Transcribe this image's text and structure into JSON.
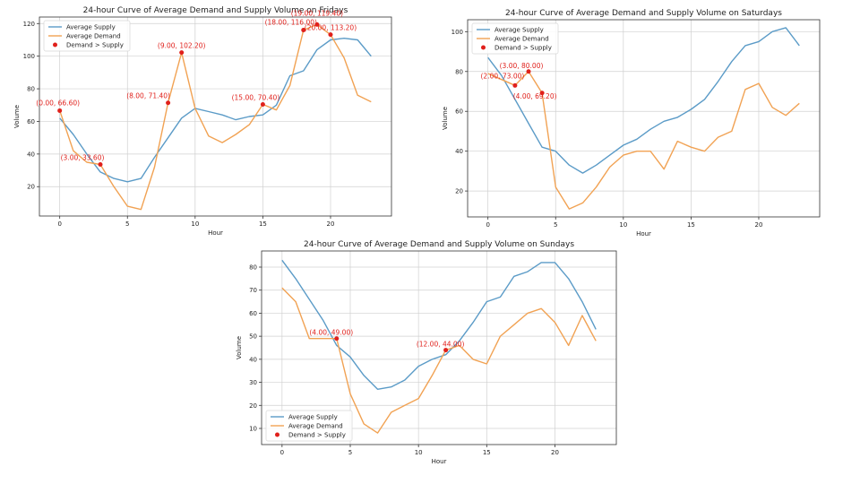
{
  "chart_data": [
    {
      "type": "line",
      "title": "24-hour Curve of Average Demand and Supply Volume on Fridays",
      "xlabel": "Hour",
      "ylabel": "Volume",
      "xlim": [
        -1.5,
        24.5
      ],
      "ylim": [
        2,
        124
      ],
      "xticks": [
        0,
        5,
        10,
        15,
        20
      ],
      "yticks": [
        20,
        40,
        60,
        80,
        100,
        120
      ],
      "grid": true,
      "legend_position": "top-left",
      "x": [
        0,
        1,
        2,
        3,
        4,
        5,
        6,
        7,
        8,
        9,
        10,
        11,
        12,
        13,
        14,
        15,
        16,
        17,
        18,
        19,
        20,
        21,
        22,
        23
      ],
      "series": [
        {
          "name": "Average Supply",
          "color": "#5b9bc7",
          "values": [
            62,
            52,
            40,
            29,
            25,
            23,
            25,
            38,
            50,
            62,
            68,
            66,
            64,
            61,
            63,
            64,
            70,
            88,
            91,
            104,
            110,
            111,
            110,
            100
          ]
        },
        {
          "name": "Average Demand",
          "color": "#f1a253",
          "values": [
            66.6,
            42,
            35,
            33.6,
            20,
            8,
            6,
            32,
            71.4,
            102.2,
            68,
            51,
            47,
            52,
            58,
            70.4,
            67,
            82,
            116,
            119.4,
            113.2,
            99,
            76,
            72
          ]
        }
      ],
      "highlight": {
        "name": "Demand > Supply",
        "color": "#e0201b",
        "points": [
          {
            "x": 0,
            "y": 66.6,
            "label": "(0.00, 66.60)"
          },
          {
            "x": 3,
            "y": 33.6,
            "label": "(3.00, 33.60)"
          },
          {
            "x": 8,
            "y": 71.4,
            "label": "(8.00, 71.40)"
          },
          {
            "x": 9,
            "y": 102.2,
            "label": "(9.00, 102.20)"
          },
          {
            "x": 15,
            "y": 70.4,
            "label": "(15.00, 70.40)"
          },
          {
            "x": 18,
            "y": 116,
            "label": "(18.00, 116.00)"
          },
          {
            "x": 19,
            "y": 119.4,
            "label": "(19.00, 119.40)"
          },
          {
            "x": 20,
            "y": 113.2,
            "label": "(20.00, 113.20)"
          }
        ]
      }
    },
    {
      "type": "line",
      "title": "24-hour Curve of Average Demand and Supply Volume on Saturdays",
      "xlabel": "Hour",
      "ylabel": "Volume",
      "xlim": [
        -1.5,
        24.5
      ],
      "ylim": [
        7,
        106
      ],
      "xticks": [
        0,
        5,
        10,
        15,
        20
      ],
      "yticks": [
        20,
        40,
        60,
        80,
        100
      ],
      "grid": true,
      "legend_position": "top-left",
      "x": [
        0,
        1,
        2,
        3,
        4,
        5,
        6,
        7,
        8,
        9,
        10,
        11,
        12,
        13,
        14,
        15,
        16,
        17,
        18,
        19,
        20,
        21,
        22,
        23
      ],
      "series": [
        {
          "name": "Average Supply",
          "color": "#5b9bc7",
          "values": [
            87,
            78,
            66,
            54,
            42,
            40,
            33,
            29,
            33,
            38,
            43,
            46,
            51,
            55,
            57,
            61,
            66,
            75,
            85,
            93,
            95,
            100,
            102,
            93
          ]
        },
        {
          "name": "Average Demand",
          "color": "#f1a253",
          "values": [
            79,
            76,
            73,
            80,
            69.2,
            22,
            11,
            14,
            22,
            32,
            38,
            40,
            40,
            31,
            45,
            42,
            40,
            47,
            50,
            71,
            74,
            62,
            58,
            64
          ]
        }
      ],
      "highlight": {
        "name": "Demand > Supply",
        "color": "#e0201b",
        "points": [
          {
            "x": 2,
            "y": 73,
            "label": "(2.00, 73.00)"
          },
          {
            "x": 3,
            "y": 80,
            "label": "(3.00, 80.00)"
          },
          {
            "x": 4,
            "y": 69.2,
            "label": "(4.00, 69.20)"
          }
        ]
      }
    },
    {
      "type": "line",
      "title": "24-hour Curve of Average Demand and Supply Volume on Sundays",
      "xlabel": "Hour",
      "ylabel": "Volume",
      "xlim": [
        -1.5,
        24.5
      ],
      "ylim": [
        3,
        87
      ],
      "xticks": [
        0,
        5,
        10,
        15,
        20
      ],
      "yticks": [
        10,
        20,
        30,
        40,
        50,
        60,
        70,
        80
      ],
      "grid": true,
      "legend_position": "bottom-left",
      "x": [
        0,
        1,
        2,
        3,
        4,
        5,
        6,
        7,
        8,
        9,
        10,
        11,
        12,
        13,
        14,
        15,
        16,
        17,
        18,
        19,
        20,
        21,
        22,
        23
      ],
      "series": [
        {
          "name": "Average Supply",
          "color": "#5b9bc7",
          "values": [
            83,
            75,
            66,
            57,
            46,
            41,
            33,
            27,
            28,
            31,
            37,
            40,
            42,
            48,
            56,
            65,
            67,
            76,
            78,
            82,
            82,
            75,
            65,
            53
          ]
        },
        {
          "name": "Average Demand",
          "color": "#f1a253",
          "values": [
            71,
            65,
            49,
            49,
            49,
            25,
            12,
            8,
            17,
            20,
            23,
            33,
            44,
            46,
            40,
            38,
            50,
            55,
            60,
            62,
            56,
            46,
            59,
            48
          ]
        }
      ],
      "highlight": {
        "name": "Demand > Supply",
        "color": "#e0201b",
        "points": [
          {
            "x": 4,
            "y": 49,
            "label": "(4.00, 49.00)"
          },
          {
            "x": 12,
            "y": 44,
            "label": "(12.00, 44.00)"
          }
        ]
      }
    }
  ]
}
